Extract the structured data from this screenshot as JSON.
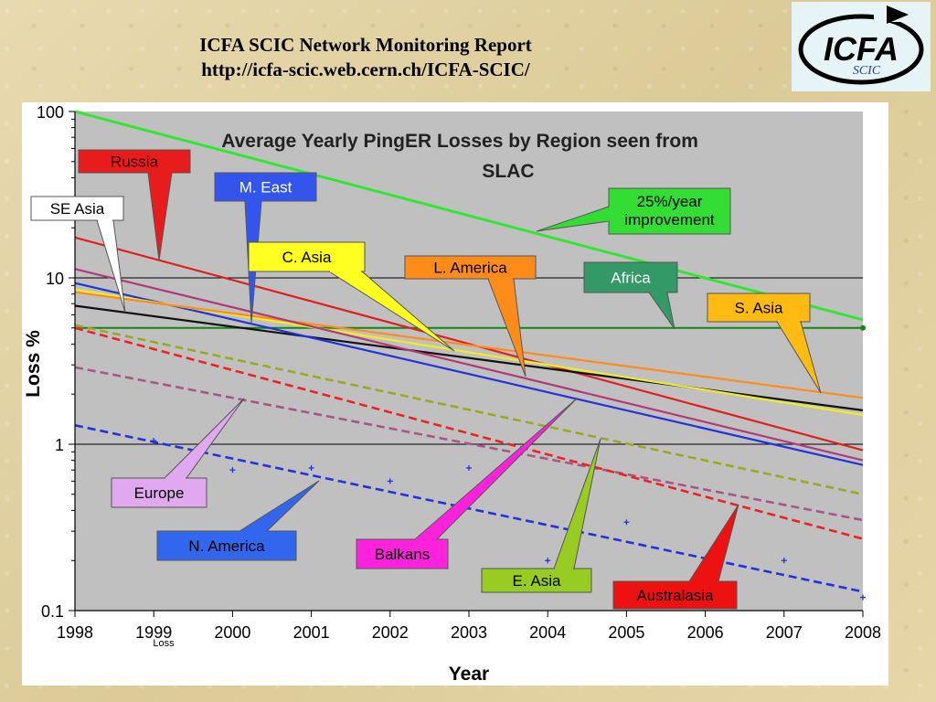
{
  "header": {
    "line1": "ICFA SCIC Network Monitoring Report",
    "line2": "http://icfa-scic.web.cern.ch/ICFA-SCIC/"
  },
  "logo": {
    "text": "ICFA",
    "subtext": "SCIC"
  },
  "chart_data": {
    "type": "line",
    "title": "Average Yearly PingER Losses by Region seen from SLAC",
    "xlabel": "Year",
    "ylabel": "Loss %",
    "yscale": "log",
    "xlim": [
      1998,
      2008
    ],
    "ylim": [
      0.1,
      100
    ],
    "xticks": [
      "1998",
      "1999",
      "2000",
      "2001",
      "2002",
      "2003",
      "2004",
      "2005",
      "2006",
      "2007",
      "2008"
    ],
    "yticks": [
      "0.1",
      "1",
      "10",
      "100"
    ],
    "stray_label": "Loss",
    "grid": "major horizontal",
    "series": [
      {
        "name": "25%/year improvement",
        "color": "#33e633",
        "style": "solid",
        "x": [
          1998,
          2008
        ],
        "y": [
          100,
          5.6
        ]
      },
      {
        "name": "Russia",
        "color": "#e02020",
        "style": "solid",
        "x": [
          1998,
          2008
        ],
        "y": [
          17.5,
          0.92
        ]
      },
      {
        "name": "SE Asia",
        "color": "#111111",
        "style": "solid",
        "x": [
          1998,
          2008
        ],
        "y": [
          6.8,
          1.6
        ]
      },
      {
        "name": "M. East",
        "color": "#2233dd",
        "style": "solid",
        "x": [
          1998,
          2008
        ],
        "y": [
          9.3,
          0.75
        ]
      },
      {
        "name": "C. Asia",
        "color": "#eeee22",
        "style": "solid",
        "x": [
          1998,
          2008
        ],
        "y": [
          8.5,
          1.5
        ]
      },
      {
        "name": "L. America",
        "color": "#ff8c1a",
        "style": "solid",
        "x": [
          1998,
          2008
        ],
        "y": [
          8.2,
          1.9
        ]
      },
      {
        "name": "Balkans",
        "color": "#b23a7a",
        "style": "solid",
        "x": [
          1998,
          2008
        ],
        "y": [
          11.3,
          0.8
        ]
      },
      {
        "name": "Europe",
        "color": "#aa5588",
        "style": "dashed",
        "x": [
          1998,
          2008
        ],
        "y": [
          2.9,
          0.35
        ]
      },
      {
        "name": "E. Asia",
        "color": "#99aa22",
        "style": "dashed",
        "x": [
          1998,
          2008
        ],
        "y": [
          5.2,
          0.5
        ]
      },
      {
        "name": "Australasia",
        "color": "#ee2222",
        "style": "dashed",
        "x": [
          1998,
          2008
        ],
        "y": [
          5.0,
          0.27
        ]
      },
      {
        "name": "N. America",
        "color": "#2233dd",
        "style": "dashed",
        "x": [
          1998,
          2008
        ],
        "y": [
          1.3,
          0.13
        ]
      }
    ],
    "reference_line": {
      "name": "Africa",
      "color": "#118811",
      "y": 5.0
    },
    "points": {
      "name": "N. America",
      "color": "#2233dd",
      "x": [
        1999,
        2000,
        2001,
        2002,
        2003,
        2004,
        2005,
        2007,
        2008
      ],
      "y": [
        1.05,
        0.7,
        0.72,
        0.6,
        0.72,
        0.2,
        0.34,
        0.2,
        0.12
      ]
    },
    "annotations": [
      {
        "label": "Russia",
        "fill": "#e81c1c",
        "text_color": "#330000"
      },
      {
        "label": "M. East",
        "fill": "#3355ee",
        "text_color": "#ffffff"
      },
      {
        "label": "SE Asia",
        "fill": "#ffffff",
        "text_color": "#000000"
      },
      {
        "label": "25%/year improvement",
        "fill": "#33dd33",
        "text_color": "#000000"
      },
      {
        "label": "C. Asia",
        "fill": "#ffff22",
        "text_color": "#000000"
      },
      {
        "label": "L. America",
        "fill": "#ff8c1a",
        "text_color": "#000000"
      },
      {
        "label": "Africa",
        "fill": "#339966",
        "text_color": "#ffffff"
      },
      {
        "label": "S. Asia",
        "fill": "#ffbb11",
        "text_color": "#000000"
      },
      {
        "label": "Europe",
        "fill": "#e0a8ee",
        "text_color": "#000000"
      },
      {
        "label": "N. America",
        "fill": "#3366ee",
        "text_color": "#000000"
      },
      {
        "label": "Balkans",
        "fill": "#ff22dd",
        "text_color": "#000000"
      },
      {
        "label": "E. Asia",
        "fill": "#99cc22",
        "text_color": "#000000"
      },
      {
        "label": "Australasia",
        "fill": "#ee1111",
        "text_color": "#000000"
      }
    ]
  }
}
